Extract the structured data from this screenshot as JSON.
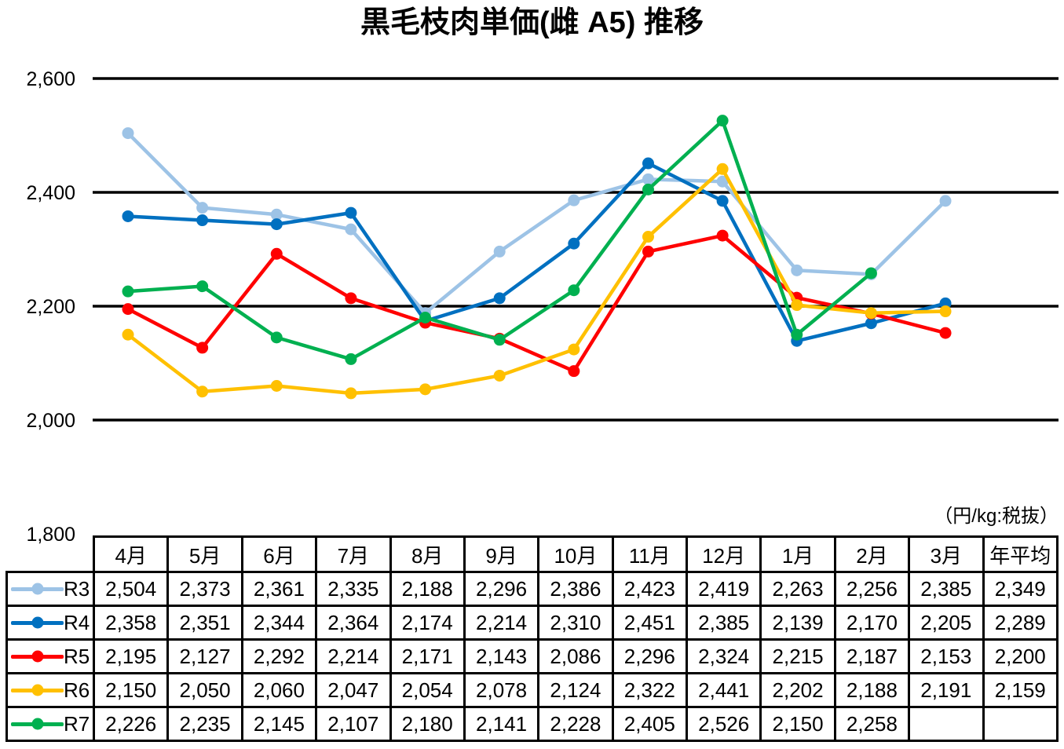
{
  "unit_note": "（円/kg:税抜）",
  "chart_data": {
    "type": "line",
    "title": "黒毛枝肉単価(雌 A5) 推移",
    "categories": [
      "4月",
      "5月",
      "6月",
      "7月",
      "8月",
      "9月",
      "10月",
      "11月",
      "12月",
      "1月",
      "2月",
      "3月"
    ],
    "avg_label": "年平均",
    "ylim": [
      1800,
      2600
    ],
    "ytick_step": 200,
    "y_ticks": [
      2600,
      2400,
      2200,
      2000,
      1800
    ],
    "y_tick_labels": [
      "2,600",
      "2,400",
      "2,200",
      "2,000",
      "1,800"
    ],
    "grid": true,
    "legend_position": "table-left",
    "marker": "circle",
    "axis_color": "#000000",
    "series": [
      {
        "name": "R3",
        "color": "#9DC3E6",
        "values": [
          2504,
          2373,
          2361,
          2335,
          2188,
          2296,
          2386,
          2423,
          2419,
          2263,
          2256,
          2385
        ],
        "annual_avg": 2349
      },
      {
        "name": "R4",
        "color": "#0070C0",
        "values": [
          2358,
          2351,
          2344,
          2364,
          2174,
          2214,
          2310,
          2451,
          2385,
          2139,
          2170,
          2205
        ],
        "annual_avg": 2289
      },
      {
        "name": "R5",
        "color": "#FF0000",
        "values": [
          2195,
          2127,
          2292,
          2214,
          2171,
          2143,
          2086,
          2296,
          2324,
          2215,
          2187,
          2153
        ],
        "annual_avg": 2200
      },
      {
        "name": "R6",
        "color": "#FFC000",
        "values": [
          2150,
          2050,
          2060,
          2047,
          2054,
          2078,
          2124,
          2322,
          2441,
          2202,
          2188,
          2191
        ],
        "annual_avg": 2159
      },
      {
        "name": "R7",
        "color": "#00B050",
        "values": [
          2226,
          2235,
          2145,
          2107,
          2180,
          2141,
          2228,
          2405,
          2526,
          2150,
          2258,
          null
        ],
        "annual_avg": null
      }
    ]
  }
}
